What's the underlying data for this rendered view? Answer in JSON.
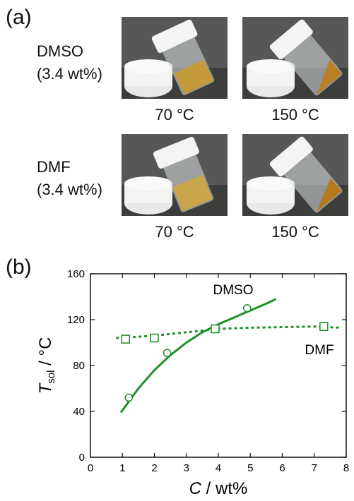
{
  "panel_a": {
    "label": "(a)",
    "rows": [
      {
        "solvent": "DMSO",
        "conc": "(3.4 wt%)",
        "temps": [
          "70 °C",
          "150 °C"
        ]
      },
      {
        "solvent": "DMF",
        "conc": "(3.4 wt%)",
        "temps": [
          "70 °C",
          "150 °C"
        ]
      }
    ],
    "colors": {
      "backdrop": "#555553",
      "table": "#3d3d3b",
      "cap": "#f2f2f0",
      "gel": "#c59a3a",
      "liquid": "#b97f22"
    }
  },
  "panel_b": {
    "label": "(b)",
    "curve_color": "#1f8f2a"
  },
  "chart_data": {
    "type": "scatter",
    "xlabel_italic": "C",
    "xlabel_rest": " / wt%",
    "ylabel_italic": "T",
    "ylabel_sub": "sol",
    "ylabel_rest": " / °C",
    "xlim": [
      0,
      8
    ],
    "ylim": [
      0,
      160
    ],
    "xticks": [
      "0",
      "1",
      "2",
      "3",
      "4",
      "5",
      "6",
      "7",
      "8"
    ],
    "yticks": [
      "0",
      "40",
      "80",
      "120",
      "160"
    ],
    "series": [
      {
        "name": "DMSO",
        "marker": "circle",
        "line": "solid",
        "x": [
          1.2,
          2.4,
          4.9
        ],
        "y": [
          52,
          91,
          130
        ],
        "fit_x": [
          0.95,
          1.5,
          2.0,
          2.5,
          3.0,
          3.5,
          4.0,
          4.5,
          5.0,
          5.5,
          5.8
        ],
        "fit_y": [
          39,
          60,
          76,
          89,
          100,
          109,
          116,
          122,
          128,
          134,
          138
        ]
      },
      {
        "name": "DMF",
        "marker": "square",
        "line": "dotted",
        "x": [
          1.1,
          2.0,
          3.9,
          7.3
        ],
        "y": [
          103,
          104,
          112,
          114
        ],
        "fit_x": [
          0.8,
          2.0,
          3.0,
          4.0,
          5.0,
          6.0,
          7.0,
          7.8
        ],
        "fit_y": [
          104,
          106,
          109,
          112,
          113,
          113.5,
          114,
          113
        ]
      }
    ]
  }
}
